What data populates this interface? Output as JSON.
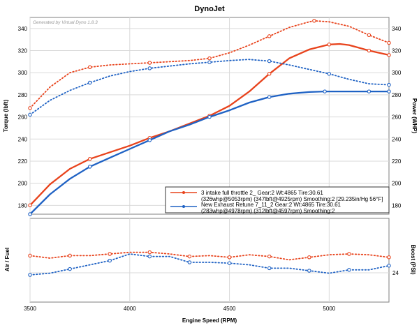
{
  "window": {
    "title": "DynoJet"
  },
  "chart_data": [
    {
      "type": "line",
      "title": "DynoJet",
      "watermark": "Generated by Virtual Dyno 1.8.3",
      "xlabel": "Engine Speed (RPM)",
      "ylabel_left": "Torque (lbft)",
      "ylabel_right": "Power (WHP)",
      "xlim": [
        3500,
        5300
      ],
      "ylim": [
        172,
        350
      ],
      "x_ticks": [
        3500,
        4000,
        4500,
        5000
      ],
      "y_ticks": [
        180,
        200,
        220,
        240,
        260,
        280,
        300,
        320,
        340
      ],
      "grid": true,
      "legend_position": "bottom-right",
      "series": [
        {
          "name": "3 intake full throttle 2_ Gear:2 Wt:4865 Tire:30.61",
          "detail": "(326whp@5053rpm) (347lbft@4925rpm) Smoothing:2 [29.235in/Hg 56°F]",
          "color": "#e8431c",
          "metric": "power",
          "style": "solid",
          "x": [
            3500,
            3600,
            3700,
            3800,
            3900,
            4000,
            4100,
            4200,
            4300,
            4400,
            4500,
            4600,
            4700,
            4800,
            4900,
            5000,
            5053,
            5100,
            5200,
            5300
          ],
          "y": [
            180,
            199,
            213,
            222,
            228,
            234,
            241,
            247,
            254,
            261,
            270,
            283,
            299,
            313,
            321,
            325.5,
            326,
            325,
            320,
            316
          ]
        },
        {
          "name": "3 intake full throttle 2_ Gear:2 Wt:4865 Tire:30.61",
          "color": "#e8431c",
          "metric": "torque",
          "style": "dotted",
          "x": [
            3500,
            3600,
            3700,
            3800,
            3900,
            4000,
            4100,
            4200,
            4300,
            4400,
            4500,
            4600,
            4700,
            4800,
            4900,
            4925,
            5000,
            5100,
            5200,
            5300
          ],
          "y": [
            268,
            287,
            300,
            305,
            307,
            308,
            309,
            310,
            311,
            313,
            318,
            325,
            333,
            341,
            346,
            347,
            346,
            342,
            334,
            327
          ]
        },
        {
          "name": "New Exhaust Retune 7_11_2 Gear:2 Wt:4865 Tire:30.61",
          "detail": "(283whp@4978rpm) (312lbft@4597rpm) Smoothing:2",
          "color": "#1f62c4",
          "metric": "power",
          "style": "solid",
          "x": [
            3500,
            3600,
            3700,
            3800,
            3900,
            4000,
            4100,
            4200,
            4300,
            4400,
            4500,
            4600,
            4700,
            4800,
            4900,
            4978,
            5000,
            5100,
            5200,
            5300
          ],
          "y": [
            172,
            190,
            204,
            215,
            223,
            231,
            239,
            247,
            253,
            260,
            266,
            273,
            278,
            281,
            282.5,
            283,
            283,
            283,
            283,
            283
          ]
        },
        {
          "name": "New Exhaust Retune 7_11_2 Gear:2 Wt:4865 Tire:30.61",
          "color": "#1f62c4",
          "metric": "torque",
          "style": "dotted",
          "x": [
            3500,
            3600,
            3700,
            3800,
            3900,
            4000,
            4100,
            4200,
            4300,
            4400,
            4500,
            4597,
            4700,
            4800,
            4900,
            5000,
            5100,
            5200,
            5300
          ],
          "y": [
            262,
            275,
            284,
            291,
            297,
            301,
            304,
            306,
            308,
            309.5,
            311,
            312,
            310.5,
            307,
            303,
            299,
            294,
            290,
            289
          ]
        }
      ]
    },
    {
      "type": "line",
      "xlabel": "Engine Speed (RPM)",
      "ylabel_left": "Air / Fuel",
      "ylabel_right": "Boost (PSI)",
      "xlim": [
        3500,
        5300
      ],
      "ylim": [
        0,
        1
      ],
      "x_ticks": [
        3500,
        4000,
        4500,
        5000
      ],
      "right_ticks": [
        "24"
      ],
      "grid": true,
      "series": [
        {
          "name": "3 intake full throttle 2_",
          "color": "#e8431c",
          "style": "dotted",
          "x": [
            3500,
            3600,
            3700,
            3800,
            3900,
            4000,
            4100,
            4200,
            4300,
            4400,
            4500,
            4600,
            4700,
            4800,
            4900,
            5000,
            5100,
            5200,
            5300
          ],
          "y": [
            0.555,
            0.525,
            0.555,
            0.555,
            0.575,
            0.595,
            0.595,
            0.575,
            0.545,
            0.555,
            0.535,
            0.565,
            0.545,
            0.505,
            0.535,
            0.565,
            0.575,
            0.565,
            0.535
          ]
        },
        {
          "name": "New Exhaust Retune 7_11_2",
          "color": "#1f62c4",
          "style": "dotted",
          "x": [
            3500,
            3600,
            3700,
            3800,
            3900,
            4000,
            4100,
            4200,
            4300,
            4400,
            4500,
            4600,
            4700,
            4800,
            4900,
            5000,
            5100,
            5200,
            5300
          ],
          "y": [
            0.325,
            0.345,
            0.395,
            0.445,
            0.495,
            0.575,
            0.545,
            0.545,
            0.475,
            0.475,
            0.465,
            0.445,
            0.405,
            0.405,
            0.375,
            0.345,
            0.385,
            0.385,
            0.435
          ]
        }
      ]
    }
  ]
}
